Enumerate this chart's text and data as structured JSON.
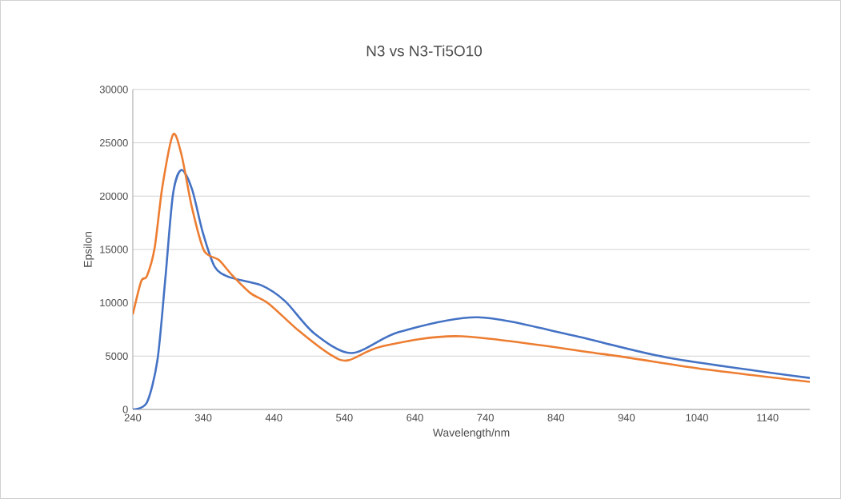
{
  "chart_data": {
    "type": "line",
    "title": "N3  vs N3-Ti5O10",
    "xlabel": "Wavelength/nm",
    "ylabel": "Epsilon",
    "xlim": [
      240,
      1200
    ],
    "xticks": [
      240,
      340,
      440,
      540,
      640,
      740,
      840,
      940,
      1040,
      1140
    ],
    "ylim": [
      0,
      30000
    ],
    "yticks": [
      0,
      5000,
      10000,
      15000,
      20000,
      25000,
      30000
    ],
    "grid": "y",
    "marker": "none",
    "line_style": "solid",
    "series": [
      {
        "color": "#4472c4",
        "x": [
          240,
          260,
          275,
          286,
          297,
          309,
          324,
          339,
          356,
          377,
          422,
          456,
          497,
          550,
          617,
          729,
          863,
          997,
          1200
        ],
        "values": [
          0,
          650,
          4650,
          12150,
          20170,
          22450,
          20650,
          16650,
          13400,
          12400,
          11650,
          10150,
          7150,
          5280,
          7250,
          8640,
          6950,
          4880,
          2950
        ]
      },
      {
        "color": "#ed7d31",
        "x": [
          240,
          252,
          260,
          271,
          282,
          297,
          309,
          324,
          341,
          362,
          380,
          407,
          433,
          475,
          520,
          545,
          594,
          706,
          908,
          1042,
          1200
        ],
        "values": [
          8900,
          12030,
          12500,
          15150,
          20900,
          25770,
          23900,
          18900,
          14900,
          14020,
          12650,
          10900,
          9900,
          7400,
          5150,
          4600,
          5920,
          6860,
          5180,
          3840,
          2580
        ]
      }
    ]
  }
}
